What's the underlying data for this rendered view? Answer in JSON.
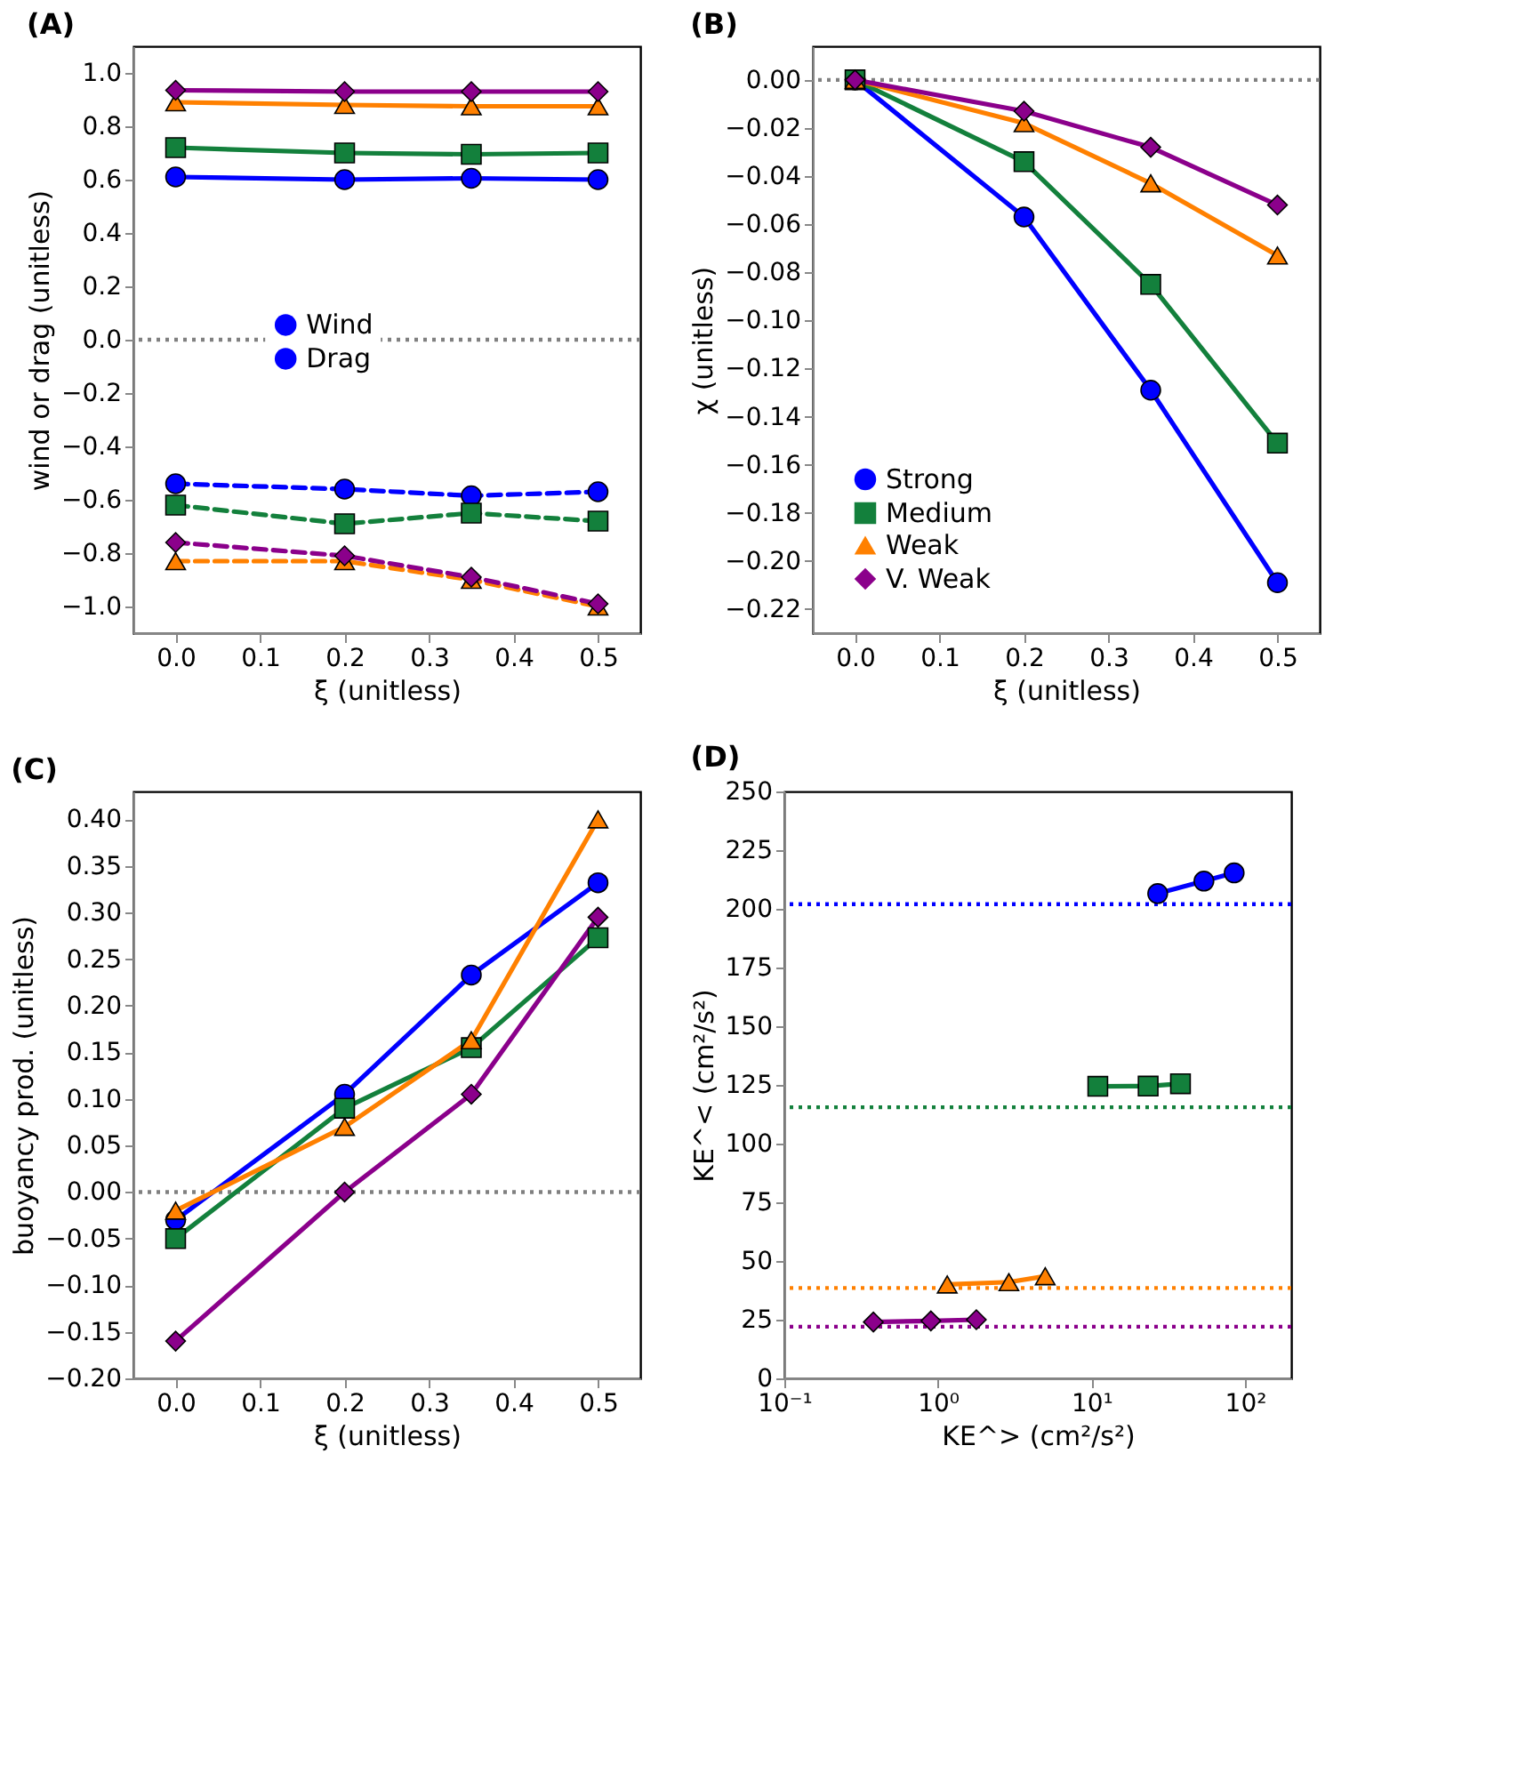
{
  "chart_data": [
    {
      "type": "line",
      "title": "(A)",
      "xlabel": "ξ (unitless)",
      "ylabel": "wind or drag (unitless)",
      "x": [
        0.0,
        0.2,
        0.35,
        0.5
      ],
      "xlim": [
        -0.05,
        0.55
      ],
      "ylim": [
        -1.1,
        1.1
      ],
      "xticks": [
        {
          "value": 0,
          "label": "0.0"
        },
        0.1,
        0.2,
        0.3,
        0.4,
        0.5
      ],
      "yticks": [
        {
          "value": -1,
          "label": "−1.0"
        },
        {
          "value": -0.8,
          "label": "−0.8"
        },
        {
          "value": -0.6,
          "label": "−0.6"
        },
        {
          "value": -0.4,
          "label": "−0.4"
        },
        {
          "value": -0.2,
          "label": "−0.2"
        },
        {
          "value": 0,
          "label": "0.0"
        },
        0.2,
        0.4,
        0.6,
        0.8,
        {
          "value": 1,
          "label": "1.0"
        }
      ],
      "ref_lines": [
        {
          "axis": "y",
          "value": 0,
          "color": "#808080",
          "line_style": "dotted"
        }
      ],
      "legend": "center",
      "grid": false,
      "series": [
        {
          "name": "Wind",
          "color": "#0000ff",
          "marker": "circle",
          "line_style": "solid",
          "values": [
            0.61,
            0.6,
            0.605,
            0.6
          ]
        },
        {
          "name": "Drag",
          "color": "#0000ff",
          "marker": "circle",
          "line_style": "dashed",
          "values": [
            -0.54,
            -0.56,
            -0.585,
            -0.57
          ]
        },
        {
          "color": "#13803c",
          "marker": "square",
          "line_style": "solid",
          "values": [
            0.72,
            0.7,
            0.695,
            0.7
          ]
        },
        {
          "color": "#13803c",
          "marker": "square",
          "line_style": "dashed",
          "values": [
            -0.62,
            -0.69,
            -0.65,
            -0.68
          ]
        },
        {
          "color": "#ff8000",
          "marker": "triangle",
          "line_style": "solid",
          "values": [
            0.89,
            0.88,
            0.875,
            0.875
          ]
        },
        {
          "color": "#ff8000",
          "marker": "triangle",
          "line_style": "dashed",
          "values": [
            -0.83,
            -0.83,
            -0.9,
            -1.0
          ]
        },
        {
          "color": "#8b008b",
          "marker": "diamond",
          "line_style": "solid",
          "values": [
            0.935,
            0.93,
            0.93,
            0.93
          ]
        },
        {
          "color": "#8b008b",
          "marker": "diamond",
          "line_style": "dashed",
          "values": [
            -0.76,
            -0.81,
            -0.89,
            -0.99
          ]
        }
      ]
    },
    {
      "type": "line",
      "title": "(B)",
      "xlabel": "ξ (unitless)",
      "ylabel": "χ (unitless)",
      "x": [
        0.0,
        0.2,
        0.35,
        0.5
      ],
      "xlim": [
        -0.05,
        0.55
      ],
      "ylim": [
        -0.23,
        0.014
      ],
      "xticks": [
        {
          "value": 0,
          "label": "0.0"
        },
        0.1,
        0.2,
        0.3,
        0.4,
        0.5
      ],
      "yticks": [
        {
          "value": -0.22,
          "label": "−0.22"
        },
        {
          "value": -0.2,
          "label": "−0.20"
        },
        {
          "value": -0.18,
          "label": "−0.18"
        },
        {
          "value": -0.16,
          "label": "−0.16"
        },
        {
          "value": -0.14,
          "label": "−0.14"
        },
        {
          "value": -0.12,
          "label": "−0.12"
        },
        {
          "value": -0.1,
          "label": "−0.10"
        },
        {
          "value": -0.08,
          "label": "−0.08"
        },
        {
          "value": -0.06,
          "label": "−0.06"
        },
        {
          "value": -0.04,
          "label": "−0.04"
        },
        {
          "value": -0.02,
          "label": "−0.02"
        },
        {
          "value": 0,
          "label": "0.00"
        }
      ],
      "ref_lines": [
        {
          "axis": "y",
          "value": 0,
          "color": "#808080",
          "line_style": "dotted"
        }
      ],
      "legend": "bottom left",
      "grid": false,
      "series": [
        {
          "name": "Strong",
          "color": "#0000ff",
          "marker": "circle",
          "line_style": "solid",
          "values": [
            0,
            -0.057,
            -0.129,
            -0.209
          ]
        },
        {
          "name": "Medium",
          "color": "#13803c",
          "marker": "square",
          "line_style": "solid",
          "values": [
            0,
            -0.034,
            -0.085,
            -0.151
          ]
        },
        {
          "name": "Weak",
          "color": "#ff8000",
          "marker": "triangle",
          "line_style": "solid",
          "values": [
            0,
            -0.018,
            -0.043,
            -0.073
          ]
        },
        {
          "name": "V. Weak",
          "color": "#8b008b",
          "marker": "diamond",
          "line_style": "solid",
          "values": [
            0,
            -0.013,
            -0.028,
            -0.052
          ]
        }
      ]
    },
    {
      "type": "line",
      "title": "(C)",
      "xlabel": "ξ (unitless)",
      "ylabel": "buoyancy prod. (unitless)",
      "x": [
        0.0,
        0.2,
        0.35,
        0.5
      ],
      "xlim": [
        -0.05,
        0.55
      ],
      "ylim": [
        -0.2,
        0.43
      ],
      "xticks": [
        {
          "value": 0,
          "label": "0.0"
        },
        0.1,
        0.2,
        0.3,
        0.4,
        0.5
      ],
      "yticks": [
        {
          "value": -0.2,
          "label": "−0.20"
        },
        {
          "value": -0.15,
          "label": "−0.15"
        },
        {
          "value": -0.1,
          "label": "−0.10"
        },
        {
          "value": -0.05,
          "label": "−0.05"
        },
        {
          "value": 0,
          "label": "0.00"
        },
        0.05,
        {
          "value": 0.1,
          "label": "0.10"
        },
        0.15,
        {
          "value": 0.2,
          "label": "0.20"
        },
        0.25,
        {
          "value": 0.3,
          "label": "0.30"
        },
        0.35,
        {
          "value": 0.4,
          "label": "0.40"
        }
      ],
      "ref_lines": [
        {
          "axis": "y",
          "value": 0,
          "color": "#808080",
          "line_style": "dotted"
        }
      ],
      "grid": false,
      "series": [
        {
          "color": "#0000ff",
          "marker": "circle",
          "line_style": "solid",
          "values": [
            -0.03,
            0.105,
            0.233,
            0.332
          ]
        },
        {
          "color": "#13803c",
          "marker": "square",
          "line_style": "solid",
          "values": [
            -0.05,
            0.09,
            0.155,
            0.273
          ]
        },
        {
          "color": "#ff8000",
          "marker": "triangle",
          "line_style": "solid",
          "values": [
            -0.02,
            0.07,
            0.163,
            0.4
          ]
        },
        {
          "color": "#8b008b",
          "marker": "diamond",
          "line_style": "solid",
          "values": [
            -0.16,
            0.0,
            0.105,
            0.295
          ]
        }
      ]
    },
    {
      "type": "line",
      "title": "(D)",
      "xlabel": "KE^> (cm²/s²)",
      "ylabel": "KE^< (cm²/s²)",
      "log": "x",
      "xlim": [
        0.1,
        200
      ],
      "ylim": [
        0,
        250
      ],
      "xticks": [
        {
          "value": 0.1,
          "label": "10⁻¹"
        },
        {
          "value": 1,
          "label": "10⁰"
        },
        {
          "value": 10,
          "label": "10¹"
        },
        {
          "value": 100,
          "label": "10²"
        }
      ],
      "yticks": [
        0,
        25,
        50,
        75,
        100,
        125,
        150,
        175,
        200,
        225,
        250
      ],
      "ref_lines": [
        {
          "axis": "y",
          "value": 202,
          "color": "#0000ff",
          "line_style": "dotted"
        },
        {
          "axis": "y",
          "value": 115.5,
          "color": "#13803c",
          "line_style": "dotted"
        },
        {
          "axis": "y",
          "value": 38.5,
          "color": "#ff8000",
          "line_style": "dotted"
        },
        {
          "axis": "y",
          "value": 22,
          "color": "#8b008b",
          "line_style": "dotted"
        }
      ],
      "grid": false,
      "series": [
        {
          "color": "#0000ff",
          "marker": "circle",
          "line_style": "solid",
          "x": [
            27,
            54,
            85
          ],
          "values": [
            206.5,
            211.8,
            215.3
          ]
        },
        {
          "color": "#13803c",
          "marker": "square",
          "line_style": "solid",
          "x": [
            11,
            23.4,
            38
          ],
          "values": [
            124.4,
            124.5,
            125.5
          ]
        },
        {
          "color": "#ff8000",
          "marker": "triangle",
          "line_style": "solid",
          "x": [
            1.15,
            2.9,
            5.0
          ],
          "values": [
            40,
            41,
            43.5
          ]
        },
        {
          "color": "#8b008b",
          "marker": "diamond",
          "line_style": "solid",
          "x": [
            0.38,
            0.9,
            1.78
          ],
          "values": [
            24,
            24.5,
            25
          ]
        }
      ]
    }
  ]
}
